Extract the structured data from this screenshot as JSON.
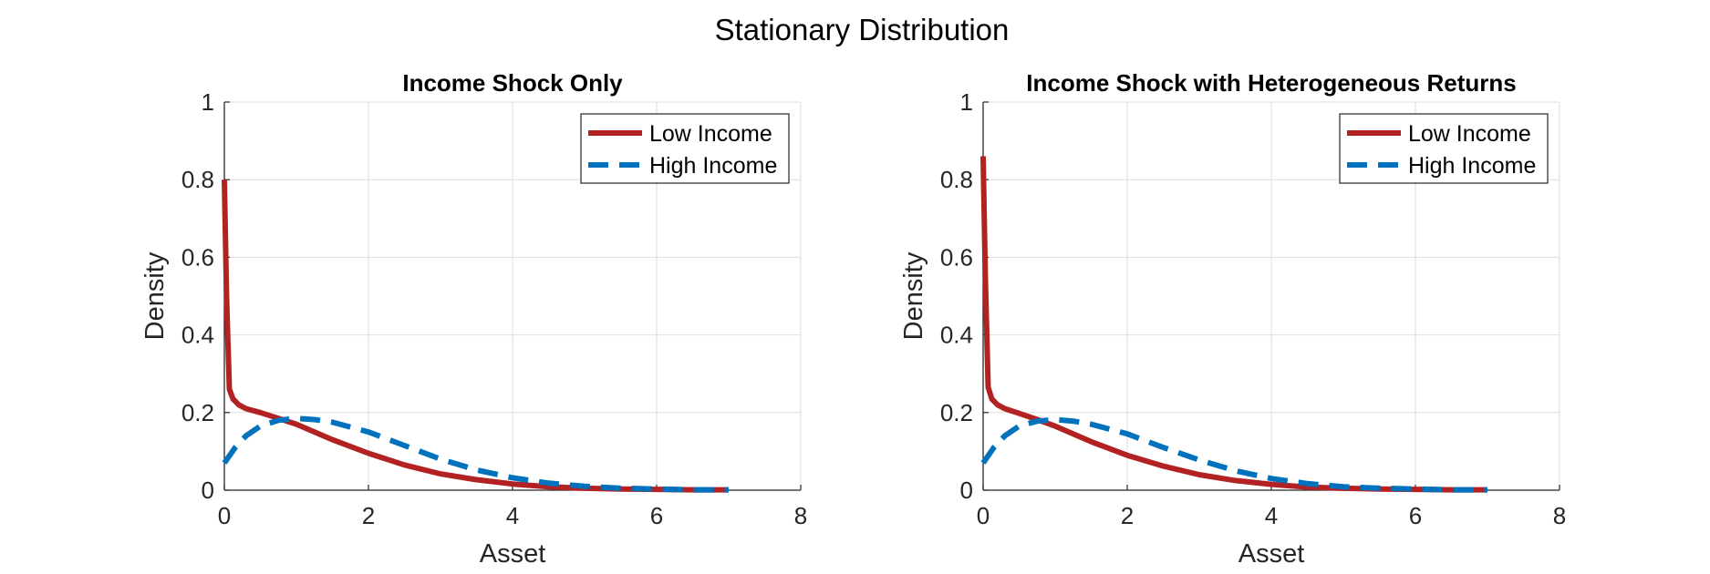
{
  "figure": {
    "suptitle": "Stationary Distribution"
  },
  "colors": {
    "low_income": "#B22222",
    "high_income": "#0072BD",
    "grid": "#DEDEDE",
    "axis": "#262626"
  },
  "chart_data": [
    {
      "type": "line",
      "title": "Income Shock Only",
      "xlabel": "Asset",
      "ylabel": "Density",
      "xlim": [
        0,
        8
      ],
      "ylim": [
        0,
        1
      ],
      "xticks": [
        "0",
        "2",
        "4",
        "6",
        "8"
      ],
      "yticks": [
        "0",
        "0.2",
        "0.4",
        "0.6",
        "0.8",
        "1"
      ],
      "grid": true,
      "legend": {
        "placement": "top-right",
        "entries": [
          "Low Income",
          "High Income"
        ]
      },
      "series": [
        {
          "name": "Low Income",
          "style": "solid",
          "x": [
            0,
            0.03,
            0.07,
            0.12,
            0.2,
            0.3,
            0.5,
            0.75,
            1.0,
            1.25,
            1.5,
            2.0,
            2.5,
            3.0,
            3.5,
            4.0,
            4.5,
            5.0,
            5.5,
            6.0,
            6.5,
            7.0
          ],
          "y": [
            0.8,
            0.5,
            0.26,
            0.235,
            0.22,
            0.21,
            0.2,
            0.185,
            0.17,
            0.15,
            0.13,
            0.095,
            0.065,
            0.042,
            0.027,
            0.016,
            0.009,
            0.005,
            0.003,
            0.002,
            0.001,
            0.001
          ]
        },
        {
          "name": "High Income",
          "style": "dashed",
          "x": [
            0,
            0.15,
            0.3,
            0.5,
            0.75,
            1.0,
            1.25,
            1.5,
            2.0,
            2.5,
            3.0,
            3.5,
            4.0,
            4.5,
            5.0,
            5.5,
            6.0,
            6.5,
            7.0
          ],
          "y": [
            0.07,
            0.11,
            0.14,
            0.165,
            0.18,
            0.185,
            0.182,
            0.175,
            0.15,
            0.115,
            0.08,
            0.052,
            0.032,
            0.018,
            0.01,
            0.005,
            0.003,
            0.001,
            0.001
          ]
        }
      ]
    },
    {
      "type": "line",
      "title": "Income Shock with Heterogeneous Returns",
      "xlabel": "Asset",
      "ylabel": "Density",
      "xlim": [
        0,
        8
      ],
      "ylim": [
        0,
        1
      ],
      "xticks": [
        "0",
        "2",
        "4",
        "6",
        "8"
      ],
      "yticks": [
        "0",
        "0.2",
        "0.4",
        "0.6",
        "0.8",
        "1"
      ],
      "grid": true,
      "legend": {
        "placement": "top-right",
        "entries": [
          "Low Income",
          "High Income"
        ]
      },
      "series": [
        {
          "name": "Low Income",
          "style": "solid",
          "x": [
            0,
            0.03,
            0.07,
            0.12,
            0.2,
            0.3,
            0.5,
            0.75,
            1.0,
            1.25,
            1.5,
            2.0,
            2.5,
            3.0,
            3.5,
            4.0,
            4.5,
            5.0,
            5.5,
            6.0,
            6.5,
            7.0
          ],
          "y": [
            0.86,
            0.55,
            0.265,
            0.235,
            0.22,
            0.21,
            0.198,
            0.182,
            0.165,
            0.145,
            0.125,
            0.09,
            0.062,
            0.04,
            0.025,
            0.015,
            0.008,
            0.005,
            0.003,
            0.002,
            0.001,
            0.001
          ]
        },
        {
          "name": "High Income",
          "style": "dashed",
          "x": [
            0,
            0.15,
            0.3,
            0.5,
            0.75,
            1.0,
            1.25,
            1.5,
            2.0,
            2.5,
            3.0,
            3.5,
            4.0,
            4.5,
            5.0,
            5.5,
            6.0,
            6.5,
            7.0
          ],
          "y": [
            0.07,
            0.11,
            0.14,
            0.165,
            0.178,
            0.182,
            0.178,
            0.17,
            0.145,
            0.11,
            0.078,
            0.05,
            0.03,
            0.017,
            0.009,
            0.005,
            0.003,
            0.001,
            0.001
          ]
        }
      ]
    }
  ]
}
